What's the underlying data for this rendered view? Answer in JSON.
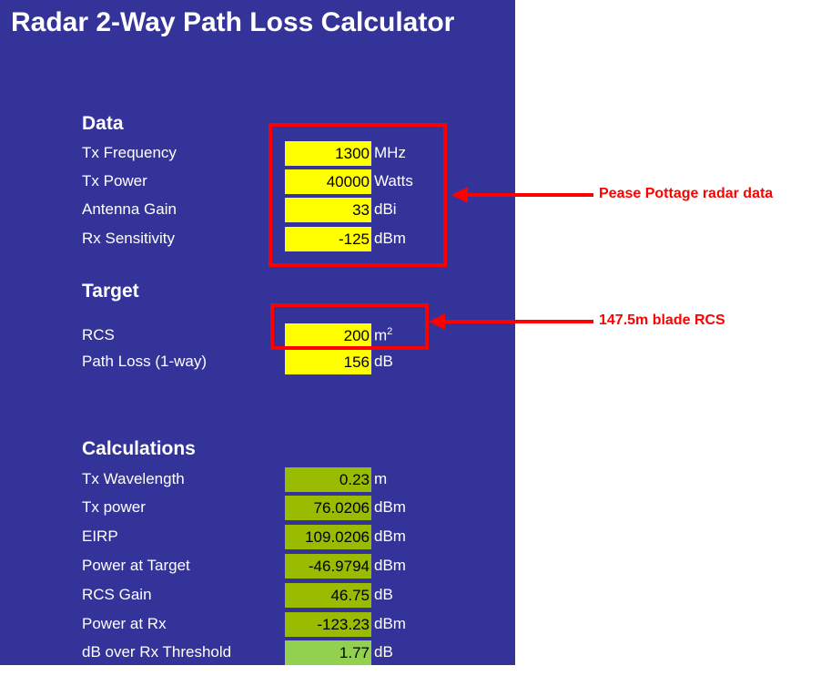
{
  "title": "Radar 2-Way Path Loss Calculator",
  "sections": [
    {
      "heading": "Data",
      "rows": [
        {
          "label": "Tx Frequency",
          "value": 1300,
          "unit": "MHz"
        },
        {
          "label": "Tx Power",
          "value": 40000,
          "unit": "Watts"
        },
        {
          "label": "Antenna Gain",
          "value": 33,
          "unit": "dBi"
        },
        {
          "label": "Rx Sensitivity",
          "value": -125,
          "unit": "dBm"
        }
      ]
    },
    {
      "heading": "Target",
      "rows": [
        {
          "label": "RCS",
          "value": 200,
          "unit": "m",
          "unit_sup": "2"
        },
        {
          "label": "Path Loss (1-way)",
          "value": 156,
          "unit": "dB"
        }
      ]
    },
    {
      "heading": "Calculations",
      "rows": [
        {
          "label": "Tx Wavelength",
          "value": 0.23,
          "unit": "m"
        },
        {
          "label": "Tx power",
          "value": 76.0206,
          "unit": "dBm"
        },
        {
          "label": "EIRP",
          "value": 109.0206,
          "unit": "dBm"
        },
        {
          "label": "Power at Target",
          "value": -46.9794,
          "unit": "dBm"
        },
        {
          "label": "RCS Gain",
          "value": 46.75,
          "unit": "dB"
        },
        {
          "label": "Power at Rx",
          "value": -123.23,
          "unit": "dBm"
        },
        {
          "label": "dB over Rx Threshold",
          "value": 1.77,
          "unit": "dB"
        }
      ]
    }
  ],
  "annotations": [
    "Pease Pottage radar data",
    "147.5m blade RCS"
  ]
}
